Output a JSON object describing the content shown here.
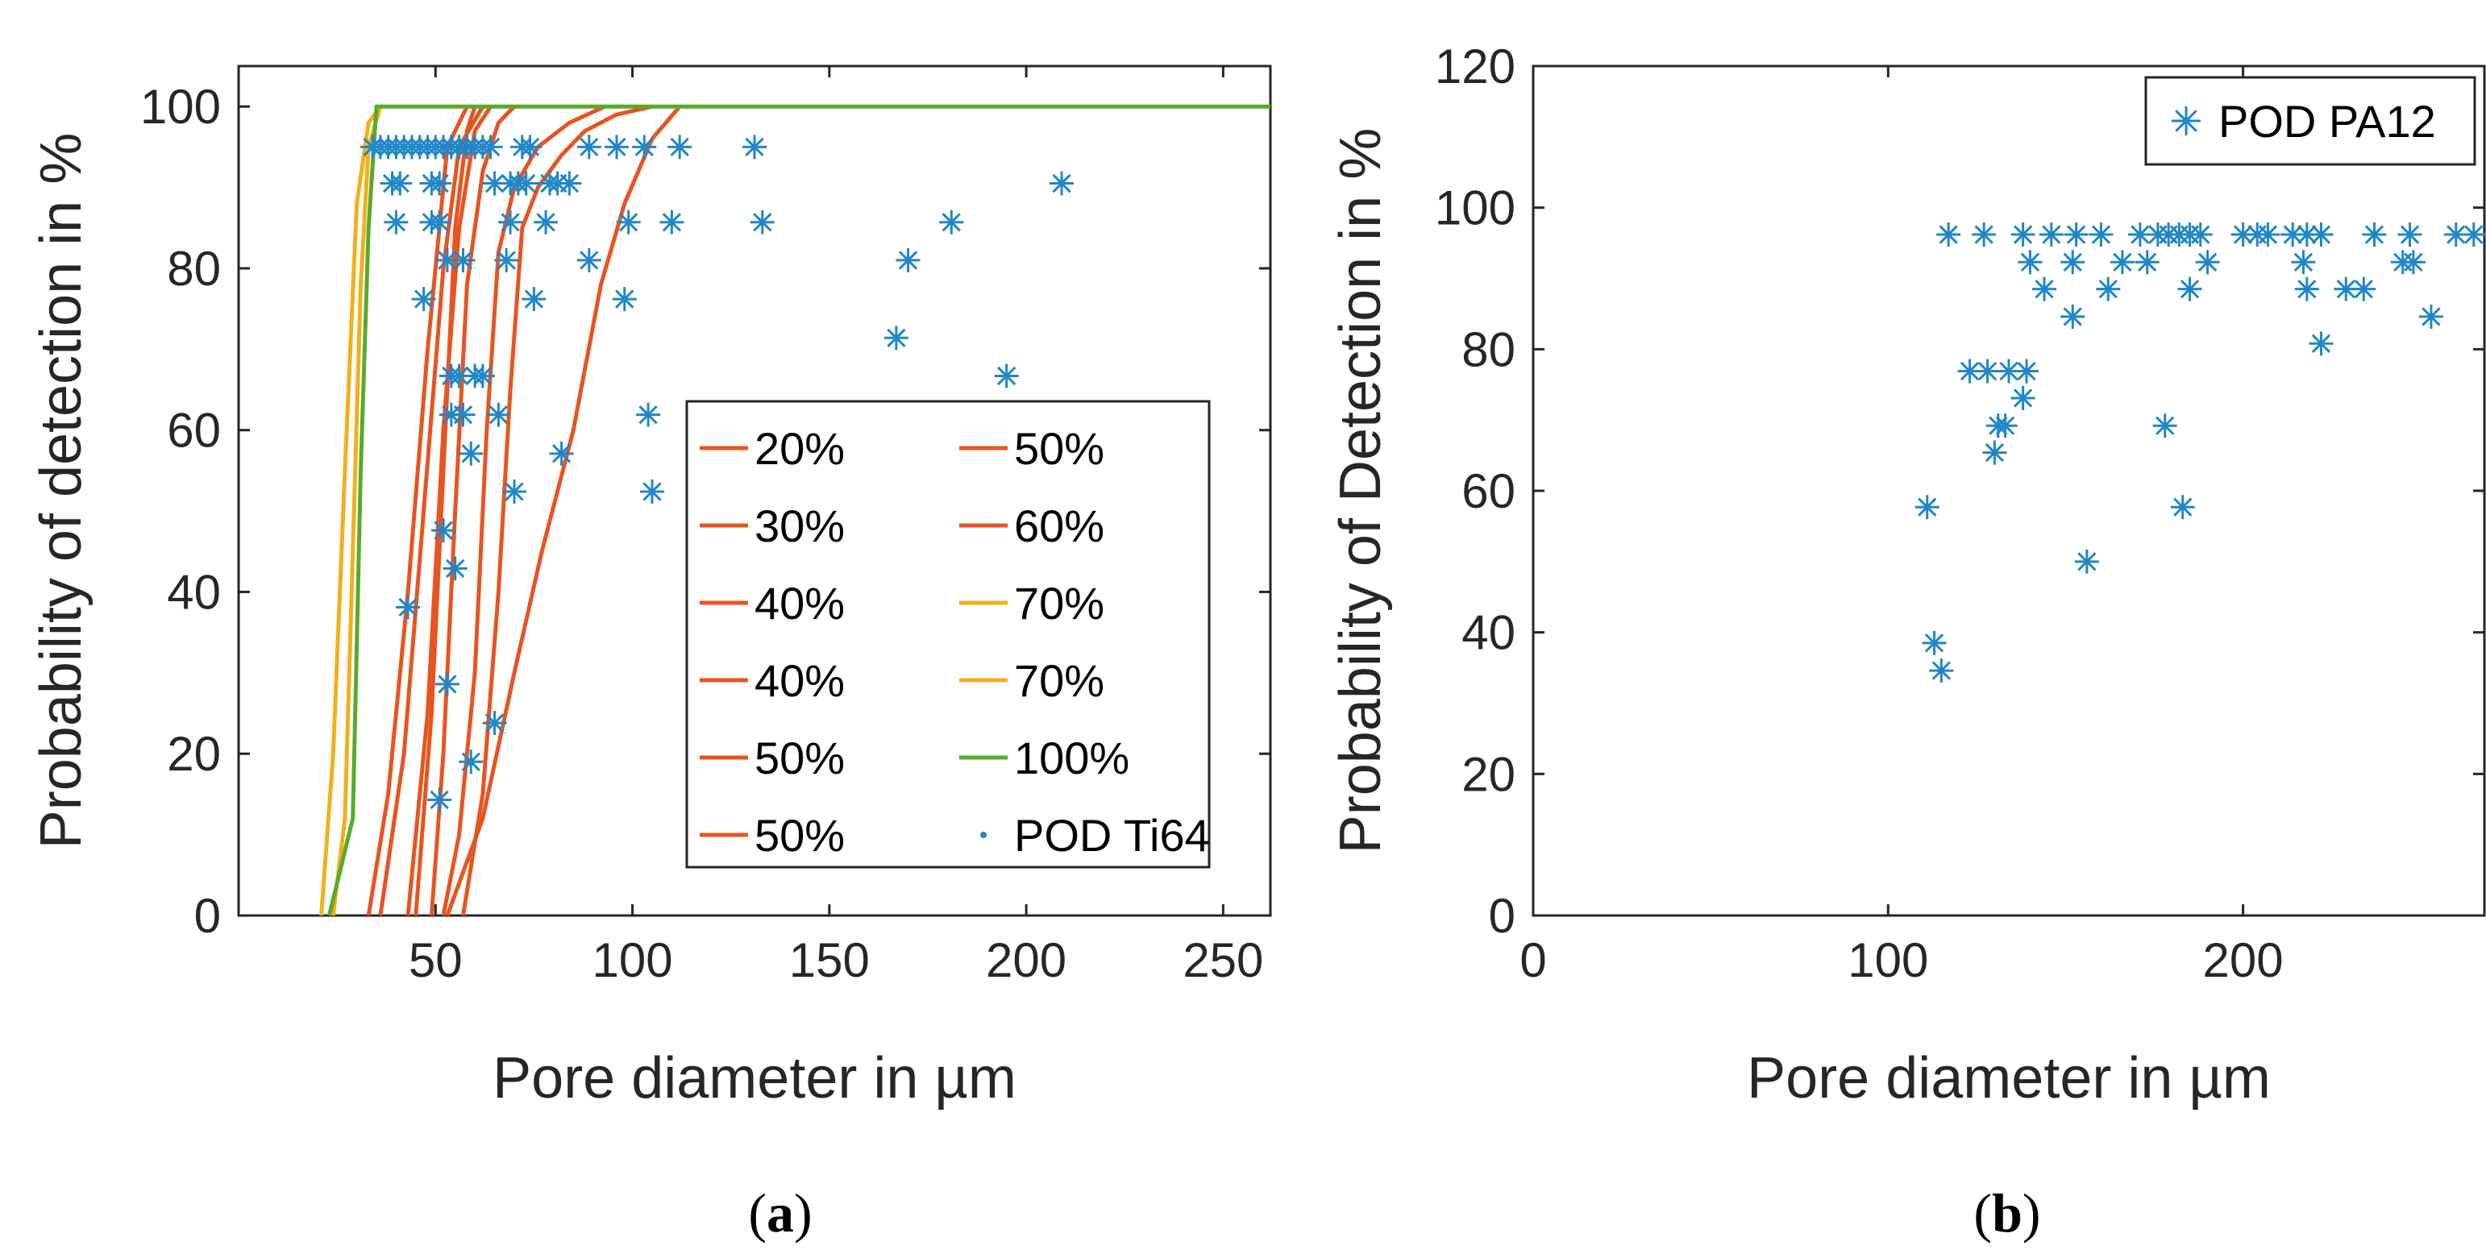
{
  "colors": {
    "orange": "#E8541F",
    "yellow": "#F2B01B",
    "green": "#5AAA2A",
    "blue": "#1F86C8",
    "axis": "#262626"
  },
  "chart_data": [
    {
      "type": "line+scatter",
      "panel": "(a)",
      "caption_open": "(",
      "caption_letter": "a",
      "caption_close": ")",
      "xlabel": "Pore diameter in µm",
      "ylabel": "Probability of detection in %",
      "xlim": [
        0,
        262
      ],
      "ylim": [
        0,
        105
      ],
      "xticks": [
        50,
        100,
        150,
        200,
        250
      ],
      "yticks": [
        0,
        20,
        40,
        60,
        80,
        100
      ],
      "legend_position": "lower-right inside",
      "series": [
        {
          "name": "20%",
          "kind": "line",
          "color": "#E8541F",
          "x": [
            33,
            38,
            43,
            48,
            53,
            58
          ],
          "y": [
            0,
            15,
            40,
            70,
            95,
            100
          ]
        },
        {
          "name": "30%",
          "kind": "line",
          "color": "#E8541F",
          "x": [
            36,
            42,
            47,
            52,
            56,
            62
          ],
          "y": [
            0,
            20,
            50,
            80,
            95,
            100
          ]
        },
        {
          "name": "40%",
          "kind": "line",
          "color": "#E8541F",
          "x": [
            43,
            48,
            52,
            56,
            60,
            64
          ],
          "y": [
            0,
            25,
            60,
            85,
            97,
            100
          ]
        },
        {
          "name": "40%",
          "kind": "line",
          "color": "#E8541F",
          "x": [
            52,
            56,
            60,
            63,
            66,
            70,
            76,
            84,
            93
          ],
          "y": [
            0,
            10,
            30,
            60,
            82,
            90,
            95,
            98,
            100
          ]
        },
        {
          "name": "50%",
          "kind": "line",
          "color": "#E8541F",
          "x": [
            57,
            62,
            66,
            69,
            72,
            76,
            82,
            88,
            96,
            105
          ],
          "y": [
            0,
            15,
            40,
            65,
            85,
            90,
            94,
            97,
            99,
            100
          ]
        },
        {
          "name": "50%",
          "kind": "line",
          "color": "#E8541F",
          "x": [
            53,
            62,
            70,
            77,
            85,
            92,
            98,
            105,
            112
          ],
          "y": [
            0,
            12,
            30,
            45,
            60,
            78,
            88,
            96,
            100
          ]
        },
        {
          "name": "50%",
          "kind": "line",
          "color": "#E8541F",
          "x": [
            45,
            49,
            52,
            55,
            58,
            60
          ],
          "y": [
            0,
            25,
            55,
            85,
            97,
            100
          ]
        },
        {
          "name": "60%",
          "kind": "line",
          "color": "#E8541F",
          "x": [
            49,
            52,
            55,
            58,
            62,
            66,
            70
          ],
          "y": [
            0,
            20,
            50,
            78,
            92,
            98,
            100
          ]
        },
        {
          "name": "70%",
          "kind": "line",
          "color": "#F2B01B",
          "x": [
            21,
            24,
            27,
            30,
            33,
            36
          ],
          "y": [
            0,
            20,
            55,
            88,
            98,
            100
          ]
        },
        {
          "name": "70%",
          "kind": "line",
          "color": "#F2B01B",
          "x": [
            24,
            27,
            29,
            31,
            33,
            36
          ],
          "y": [
            0,
            12,
            45,
            78,
            95,
            100
          ]
        },
        {
          "name": "100%",
          "kind": "line",
          "color": "#5AAA2A",
          "x": [
            23,
            29,
            31,
            33,
            35,
            262
          ],
          "y": [
            0,
            12,
            55,
            85,
            100,
            100
          ]
        },
        {
          "name": "POD Ti64",
          "kind": "scatter",
          "color": "#1F86C8",
          "x": [
            34,
            36,
            38,
            40,
            42,
            44,
            46,
            48,
            50,
            52,
            54,
            56,
            58,
            60,
            62,
            64,
            72,
            74,
            131,
            39,
            41,
            49,
            51,
            65,
            69,
            71,
            73,
            79,
            81,
            84,
            89,
            96,
            103,
            112,
            40,
            49,
            51,
            69,
            78,
            99,
            110,
            133,
            181,
            53,
            57,
            68,
            89,
            170,
            47,
            75,
            98,
            167,
            54,
            56,
            60,
            62,
            195,
            54,
            57,
            66,
            104,
            59,
            82,
            70,
            105,
            52,
            55,
            43,
            53,
            65,
            59,
            51,
            209
          ],
          "y": [
            95,
            95,
            95,
            95,
            95,
            95,
            95,
            95,
            95,
            95,
            95,
            95,
            95,
            95,
            95,
            95,
            95,
            95,
            95,
            90.5,
            90.5,
            90.5,
            90.5,
            90.5,
            90.5,
            90.5,
            90.5,
            90.5,
            90.5,
            90.5,
            95,
            95,
            95,
            95,
            85.7,
            85.7,
            85.7,
            85.7,
            85.7,
            85.7,
            85.7,
            85.7,
            85.7,
            81,
            81,
            81,
            81,
            81,
            76.2,
            76.2,
            76.2,
            71.4,
            66.7,
            66.7,
            66.7,
            66.7,
            66.7,
            61.9,
            61.9,
            61.9,
            61.9,
            57.1,
            57.1,
            52.4,
            52.4,
            47.6,
            42.9,
            38.1,
            28.6,
            23.8,
            19,
            14.3,
            90.5
          ]
        }
      ],
      "legend": [
        {
          "label": "20%",
          "color": "#E8541F",
          "kind": "line"
        },
        {
          "label": "50%",
          "color": "#E8541F",
          "kind": "line"
        },
        {
          "label": "30%",
          "color": "#E8541F",
          "kind": "line"
        },
        {
          "label": "60%",
          "color": "#E8541F",
          "kind": "line"
        },
        {
          "label": "40%",
          "color": "#E8541F",
          "kind": "line"
        },
        {
          "label": "70%",
          "color": "#F2B01B",
          "kind": "line"
        },
        {
          "label": "40%",
          "color": "#E8541F",
          "kind": "line"
        },
        {
          "label": "70%",
          "color": "#F2B01B",
          "kind": "line"
        },
        {
          "label": "50%",
          "color": "#E8541F",
          "kind": "line"
        },
        {
          "label": "100%",
          "color": "#5AAA2A",
          "kind": "line"
        },
        {
          "label": "50%",
          "color": "#E8541F",
          "kind": "line"
        },
        {
          "label": "POD Ti64",
          "color": "#1F86C8",
          "kind": "dot"
        }
      ]
    },
    {
      "type": "scatter",
      "panel": "(b)",
      "caption_open": "(",
      "caption_letter": "b",
      "caption_close": ")",
      "xlabel": "Pore diameter in µm",
      "ylabel": "Probability of Detection in %",
      "xlim": [
        0,
        268
      ],
      "ylim": [
        0,
        120
      ],
      "xticks": [
        0,
        100,
        200
      ],
      "yticks": [
        0,
        20,
        40,
        60,
        80,
        100,
        120
      ],
      "legend_position": "top-right inside",
      "series": [
        {
          "name": "POD PA12",
          "kind": "scatter",
          "color": "#1F86C8",
          "x": [
            117,
            127,
            138,
            146,
            153,
            160,
            171,
            176,
            179,
            182,
            185,
            188,
            200,
            204,
            207,
            214,
            218,
            222,
            237,
            247,
            260,
            265,
            140,
            152,
            166,
            173,
            190,
            217,
            245,
            248,
            144,
            162,
            185,
            218,
            229,
            234,
            152,
            253,
            222,
            123,
            128,
            134,
            139,
            138,
            178,
            131,
            133,
            130,
            111,
            183,
            156,
            113,
            115
          ],
          "y": [
            96.2,
            96.2,
            96.2,
            96.2,
            96.2,
            96.2,
            96.2,
            96.2,
            96.2,
            96.2,
            96.2,
            96.2,
            96.2,
            96.2,
            96.2,
            96.2,
            96.2,
            96.2,
            96.2,
            96.2,
            96.2,
            96.2,
            92.3,
            92.3,
            92.3,
            92.3,
            92.3,
            92.3,
            92.3,
            92.3,
            88.5,
            88.5,
            88.5,
            88.5,
            88.5,
            88.5,
            84.6,
            84.6,
            80.8,
            76.9,
            76.9,
            76.9,
            76.9,
            73.1,
            69.2,
            69.2,
            69.2,
            65.4,
            57.7,
            57.7,
            50,
            38.5,
            34.6
          ]
        }
      ],
      "legend": [
        {
          "label": "POD PA12",
          "color": "#1F86C8",
          "kind": "star"
        }
      ]
    }
  ]
}
